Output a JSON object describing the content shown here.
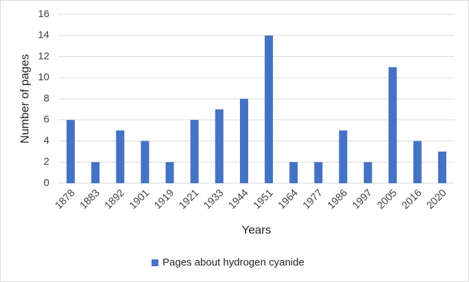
{
  "chart_data": {
    "type": "bar",
    "categories": [
      "1878",
      "1883",
      "1892",
      "1901",
      "1919",
      "1921",
      "1933",
      "1944",
      "1951",
      "1964",
      "1977",
      "1986",
      "1997",
      "2005",
      "2016",
      "2020"
    ],
    "series": [
      {
        "name": "Pages about hydrogen cyanide",
        "color": "#4472c4",
        "values": [
          6,
          2,
          5,
          4,
          2,
          6,
          7,
          8,
          14,
          2,
          2,
          5,
          2,
          11,
          4,
          3
        ]
      }
    ],
    "x_label": "Years",
    "y_label": "Number of pages",
    "ylim": [
      0,
      16
    ],
    "yticks": [
      0,
      2,
      4,
      6,
      8,
      10,
      12,
      14,
      16
    ],
    "grid": true,
    "legend": "bottom"
  }
}
